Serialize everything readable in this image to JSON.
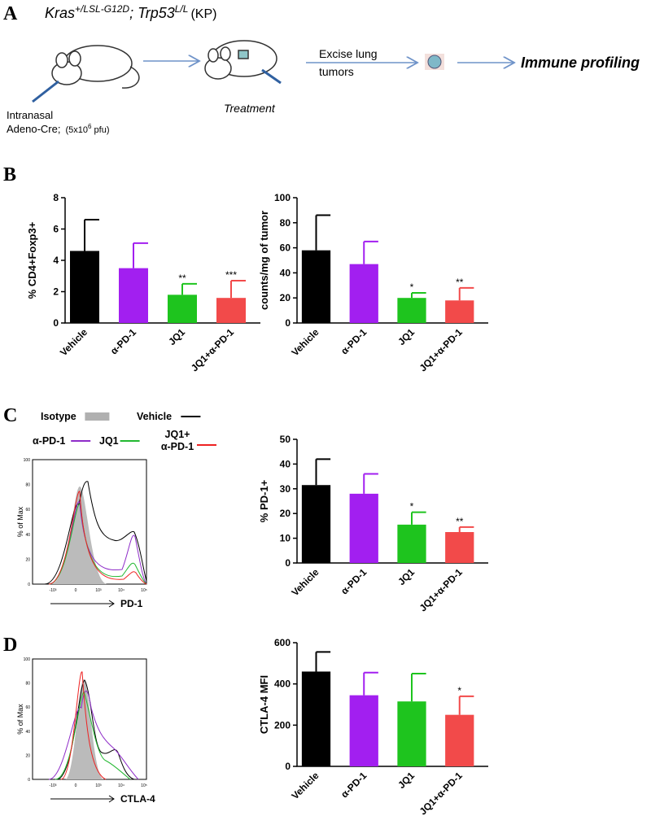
{
  "panel_labels": [
    "A",
    "B",
    "C",
    "D"
  ],
  "schematic": {
    "genotype": [
      "Kras",
      "+/LSL-G12D",
      "; Trp53",
      "L/L",
      "(KP)"
    ],
    "delivery": [
      "Intranasal",
      "Adeno-Cre;",
      "(5x10",
      "6",
      " pfu)"
    ],
    "treatment": "Treatment",
    "excise": [
      "Excise lung",
      "tumors"
    ],
    "profiling": "Immune profiling"
  },
  "flow": [
    {
      "ylabel": "% of Max",
      "xlabel": "PD-1",
      "xticks": [
        "-10³",
        "0",
        "10³",
        "10⁴",
        "10⁵"
      ],
      "yticks": [
        "0",
        "20",
        "40",
        "60",
        "80",
        "100"
      ],
      "legend": [
        {
          "label": [
            "Isotype"
          ],
          "color": "#b0b0b0"
        },
        {
          "label": [
            "Vehicle"
          ],
          "color": "#000000"
        },
        {
          "label": [
            "α-PD-1"
          ],
          "color": "#8e2cc8"
        },
        {
          "label": [
            "JQ1"
          ],
          "color": "#22b830"
        },
        {
          "label": [
            "JQ1+",
            "α-PD-1"
          ],
          "color": "#ee2222"
        }
      ]
    },
    {
      "ylabel": "% of Max",
      "xlabel": "CTLA-4",
      "xticks": [
        "-10³",
        "0",
        "10³",
        "10⁴",
        "10⁵"
      ],
      "yticks": [
        "0",
        "20",
        "40",
        "60",
        "80",
        "100"
      ]
    }
  ],
  "chart_data": [
    {
      "type": "bar",
      "ylabel": "% CD4+Foxp3+",
      "categories": [
        "Vehicle",
        "α-PD-1",
        "JQ1",
        "JQ1+α-PD-1"
      ],
      "values": [
        4.6,
        3.5,
        1.8,
        1.6
      ],
      "errors": [
        2.0,
        1.6,
        0.7,
        1.1
      ],
      "annotations": [
        null,
        null,
        "**",
        "***"
      ],
      "colors": [
        "#000000",
        "#a21ff0",
        "#1ec41e",
        "#f24a4a"
      ],
      "ylim": [
        0,
        8
      ],
      "yticks": [
        0,
        2,
        4,
        6,
        8
      ]
    },
    {
      "type": "bar",
      "ylabel": "counts/mg of tumor",
      "categories": [
        "Vehicle",
        "α-PD-1",
        "JQ1",
        "JQ1+α-PD-1"
      ],
      "values": [
        58,
        47,
        20,
        18
      ],
      "errors": [
        28,
        18,
        4,
        10
      ],
      "annotations": [
        null,
        null,
        "*",
        "**"
      ],
      "colors": [
        "#000000",
        "#a21ff0",
        "#1ec41e",
        "#f24a4a"
      ],
      "ylim": [
        0,
        100
      ],
      "yticks": [
        0,
        20,
        40,
        60,
        80,
        100
      ]
    },
    {
      "type": "bar",
      "ylabel": "% PD-1+",
      "categories": [
        "Vehicle",
        "α-PD-1",
        "JQ1",
        "JQ1+α-PD-1"
      ],
      "values": [
        31.5,
        28,
        15.5,
        12.5
      ],
      "errors": [
        10.5,
        8,
        5,
        2
      ],
      "annotations": [
        null,
        null,
        "*",
        "**"
      ],
      "colors": [
        "#000000",
        "#a21ff0",
        "#1ec41e",
        "#f24a4a"
      ],
      "ylim": [
        0,
        50
      ],
      "yticks": [
        0,
        10,
        20,
        30,
        40,
        50
      ]
    },
    {
      "type": "bar",
      "ylabel": "CTLA-4 MFI",
      "categories": [
        "Vehicle",
        "α-PD-1",
        "JQ1",
        "JQ1+α-PD-1"
      ],
      "values": [
        460,
        345,
        315,
        250
      ],
      "errors": [
        95,
        110,
        135,
        90
      ],
      "annotations": [
        null,
        null,
        null,
        "*"
      ],
      "colors": [
        "#000000",
        "#a21ff0",
        "#1ec41e",
        "#f24a4a"
      ],
      "ylim": [
        0,
        600
      ],
      "yticks": [
        0,
        200,
        400,
        600
      ]
    }
  ]
}
